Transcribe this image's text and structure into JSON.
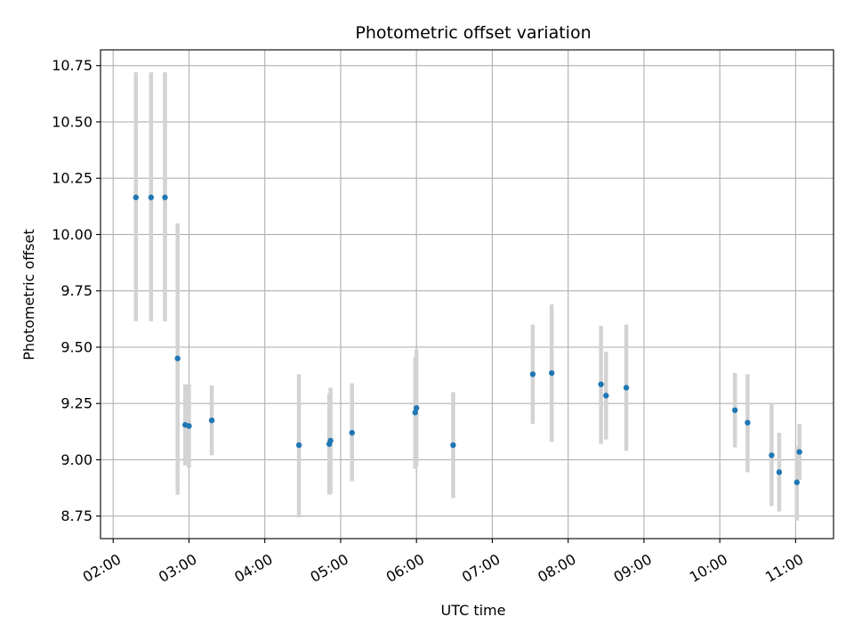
{
  "chart_data": {
    "type": "scatter",
    "title": "Photometric offset variation",
    "xlabel": "UTC time",
    "ylabel": "Photometric offset",
    "x_axis_type": "time",
    "xlim": [
      "01:50",
      "11:30"
    ],
    "ylim": [
      8.65,
      10.82
    ],
    "x_ticks": [
      "02:00",
      "03:00",
      "04:00",
      "05:00",
      "06:00",
      "07:00",
      "08:00",
      "09:00",
      "10:00",
      "11:00"
    ],
    "y_ticks": [
      "8.75",
      "9.00",
      "9.25",
      "9.50",
      "9.75",
      "10.00",
      "10.25",
      "10.50",
      "10.75"
    ],
    "grid": true,
    "point_color": "#1f77b4",
    "errorbar_color": "#d3d3d3",
    "points": [
      {
        "time": "02:18",
        "y": 10.165,
        "err_low": 9.615,
        "err_high": 10.72
      },
      {
        "time": "02:30",
        "y": 10.165,
        "err_low": 9.615,
        "err_high": 10.72
      },
      {
        "time": "02:41",
        "y": 10.165,
        "err_low": 9.615,
        "err_high": 10.72
      },
      {
        "time": "02:51",
        "y": 9.45,
        "err_low": 8.845,
        "err_high": 10.05
      },
      {
        "time": "02:57",
        "y": 9.155,
        "err_low": 8.975,
        "err_high": 9.335
      },
      {
        "time": "03:00",
        "y": 9.15,
        "err_low": 8.965,
        "err_high": 9.335
      },
      {
        "time": "03:18",
        "y": 9.175,
        "err_low": 9.02,
        "err_high": 9.33
      },
      {
        "time": "04:27",
        "y": 9.065,
        "err_low": 8.745,
        "err_high": 9.38
      },
      {
        "time": "04:51",
        "y": 9.07,
        "err_low": 8.845,
        "err_high": 9.295
      },
      {
        "time": "04:52",
        "y": 9.085,
        "err_low": 8.85,
        "err_high": 9.32
      },
      {
        "time": "05:09",
        "y": 9.12,
        "err_low": 8.905,
        "err_high": 9.34
      },
      {
        "time": "05:59",
        "y": 9.21,
        "err_low": 8.96,
        "err_high": 9.455
      },
      {
        "time": "06:00",
        "y": 9.23,
        "err_low": 8.97,
        "err_high": 9.49
      },
      {
        "time": "06:29",
        "y": 9.065,
        "err_low": 8.83,
        "err_high": 9.3
      },
      {
        "time": "07:32",
        "y": 9.38,
        "err_low": 9.16,
        "err_high": 9.6
      },
      {
        "time": "07:47",
        "y": 9.385,
        "err_low": 9.08,
        "err_high": 9.69
      },
      {
        "time": "08:26",
        "y": 9.335,
        "err_low": 9.07,
        "err_high": 9.595
      },
      {
        "time": "08:30",
        "y": 9.285,
        "err_low": 9.09,
        "err_high": 9.48
      },
      {
        "time": "08:46",
        "y": 9.32,
        "err_low": 9.04,
        "err_high": 9.6
      },
      {
        "time": "10:12",
        "y": 9.22,
        "err_low": 9.055,
        "err_high": 9.385
      },
      {
        "time": "10:22",
        "y": 9.165,
        "err_low": 8.945,
        "err_high": 9.38
      },
      {
        "time": "10:41",
        "y": 9.02,
        "err_low": 8.795,
        "err_high": 9.25
      },
      {
        "time": "10:47",
        "y": 8.945,
        "err_low": 8.77,
        "err_high": 9.12
      },
      {
        "time": "11:01",
        "y": 8.9,
        "err_low": 8.73,
        "err_high": 9.06
      },
      {
        "time": "11:03",
        "y": 9.035,
        "err_low": 8.91,
        "err_high": 9.16
      }
    ]
  }
}
